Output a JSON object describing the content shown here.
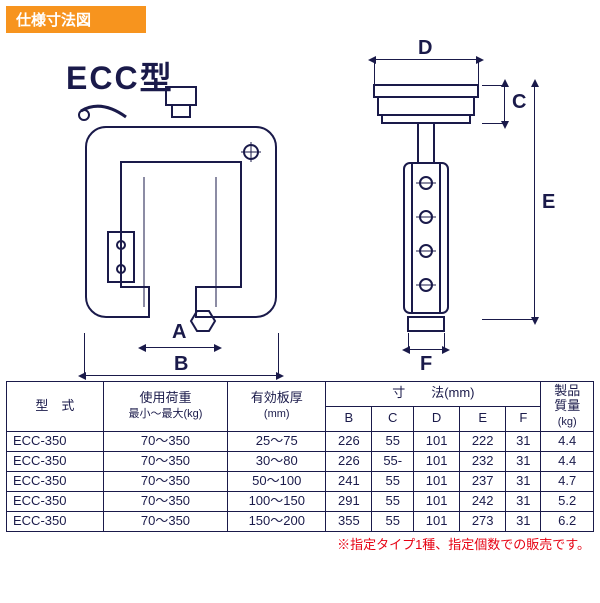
{
  "header": "仕様寸法図",
  "model_label": "ECC型",
  "dim_labels": {
    "A": "A",
    "B": "B",
    "C": "C",
    "D": "D",
    "E": "E",
    "F": "F"
  },
  "diagram": {
    "stroke_color": "#1a1a4a",
    "background": "#ffffff",
    "line_width_main": 2,
    "line_width_thin": 1
  },
  "table": {
    "headers": {
      "model": "型　式",
      "load": "使用荷重",
      "load_sub": "最小～最大(kg)",
      "thickness": "有効板厚",
      "thickness_sub": "(mm)",
      "dims": "寸　　法(mm)",
      "B": "B",
      "C": "C",
      "D": "D",
      "E": "E",
      "F": "F",
      "mass": "製品",
      "mass_sub": "質量",
      "mass_unit": "(kg)"
    },
    "rows": [
      {
        "model": "ECC-350",
        "load": "70～350",
        "thick": "25～75",
        "B": "226",
        "C": "55",
        "D": "101",
        "E": "222",
        "F": "31",
        "mass": "4.4"
      },
      {
        "model": "ECC-350",
        "load": "70～350",
        "thick": "30～80",
        "B": "226",
        "C": "55-",
        "D": "101",
        "E": "232",
        "F": "31",
        "mass": "4.4"
      },
      {
        "model": "ECC-350",
        "load": "70～350",
        "thick": "50～100",
        "B": "241",
        "C": "55",
        "D": "101",
        "E": "237",
        "F": "31",
        "mass": "4.7"
      },
      {
        "model": "ECC-350",
        "load": "70～350",
        "thick": "100～150",
        "B": "291",
        "C": "55",
        "D": "101",
        "E": "242",
        "F": "31",
        "mass": "5.2"
      },
      {
        "model": "ECC-350",
        "load": "70～350",
        "thick": "150～200",
        "B": "355",
        "C": "55",
        "D": "101",
        "E": "273",
        "F": "31",
        "mass": "6.2"
      }
    ]
  },
  "note": "※指定タイプ1種、指定個数での販売です。",
  "colors": {
    "header_bg": "#f7941e",
    "header_fg": "#ffffff",
    "line": "#1a1a4a",
    "note": "#e60012",
    "bg": "#ffffff"
  }
}
